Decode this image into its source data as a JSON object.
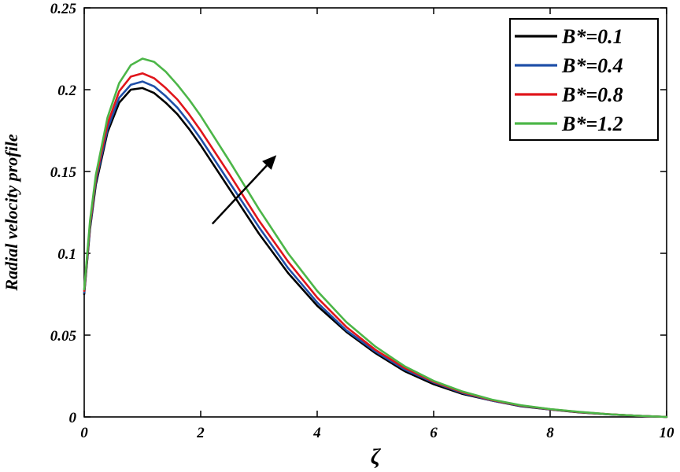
{
  "chart_data": {
    "type": "line",
    "xlabel": "ζ",
    "ylabel": "Radial velocity profile",
    "xlim": [
      0,
      10
    ],
    "ylim": [
      0,
      0.25
    ],
    "x_ticks": [
      0,
      2,
      4,
      6,
      8,
      10
    ],
    "y_ticks": [
      0,
      0.05,
      0.1,
      0.15,
      0.2,
      0.25
    ],
    "x_tick_labels": [
      "0",
      "2",
      "4",
      "6",
      "8",
      "10"
    ],
    "y_tick_labels": [
      "0",
      "0.05",
      "0.1",
      "0.15",
      "0.2",
      "0.25"
    ],
    "grid": false,
    "legend_position": "top-right",
    "x": [
      0,
      0.1,
      0.2,
      0.4,
      0.6,
      0.8,
      1.0,
      1.2,
      1.4,
      1.6,
      1.8,
      2.0,
      2.5,
      3.0,
      3.5,
      4.0,
      4.5,
      5.0,
      5.5,
      6.0,
      6.5,
      7.0,
      7.5,
      8.0,
      8.5,
      9.0,
      9.5,
      10.0
    ],
    "series": [
      {
        "name": "B*=0.1",
        "color": "#000000",
        "values": [
          0.075,
          0.115,
          0.142,
          0.174,
          0.192,
          0.2,
          0.201,
          0.198,
          0.192,
          0.185,
          0.176,
          0.166,
          0.139,
          0.112,
          0.088,
          0.068,
          0.052,
          0.039,
          0.028,
          0.02,
          0.014,
          0.01,
          0.0065,
          0.0045,
          0.0028,
          0.0016,
          0.0007,
          0.0
        ]
      },
      {
        "name": "B*=0.4",
        "color": "#1f4fa8",
        "values": [
          0.076,
          0.116,
          0.144,
          0.176,
          0.195,
          0.203,
          0.205,
          0.202,
          0.196,
          0.189,
          0.18,
          0.17,
          0.143,
          0.116,
          0.091,
          0.07,
          0.053,
          0.04,
          0.029,
          0.021,
          0.0145,
          0.01,
          0.0067,
          0.0046,
          0.0029,
          0.0016,
          0.0007,
          0.0
        ]
      },
      {
        "name": "B*=0.8",
        "color": "#e0151b",
        "values": [
          0.077,
          0.118,
          0.146,
          0.179,
          0.199,
          0.208,
          0.21,
          0.207,
          0.201,
          0.194,
          0.185,
          0.175,
          0.148,
          0.12,
          0.095,
          0.073,
          0.055,
          0.041,
          0.03,
          0.0215,
          0.015,
          0.0103,
          0.0069,
          0.0047,
          0.003,
          0.0017,
          0.0007,
          0.0
        ]
      },
      {
        "name": "B*=1.2",
        "color": "#4cb648",
        "values": [
          0.078,
          0.12,
          0.148,
          0.183,
          0.204,
          0.215,
          0.219,
          0.217,
          0.211,
          0.203,
          0.194,
          0.184,
          0.156,
          0.127,
          0.1,
          0.077,
          0.058,
          0.043,
          0.031,
          0.022,
          0.0155,
          0.0106,
          0.0071,
          0.0048,
          0.0031,
          0.0017,
          0.0007,
          0.0
        ]
      }
    ],
    "arrow": {
      "from": [
        2.2,
        0.118
      ],
      "to": [
        3.3,
        0.16
      ]
    }
  }
}
